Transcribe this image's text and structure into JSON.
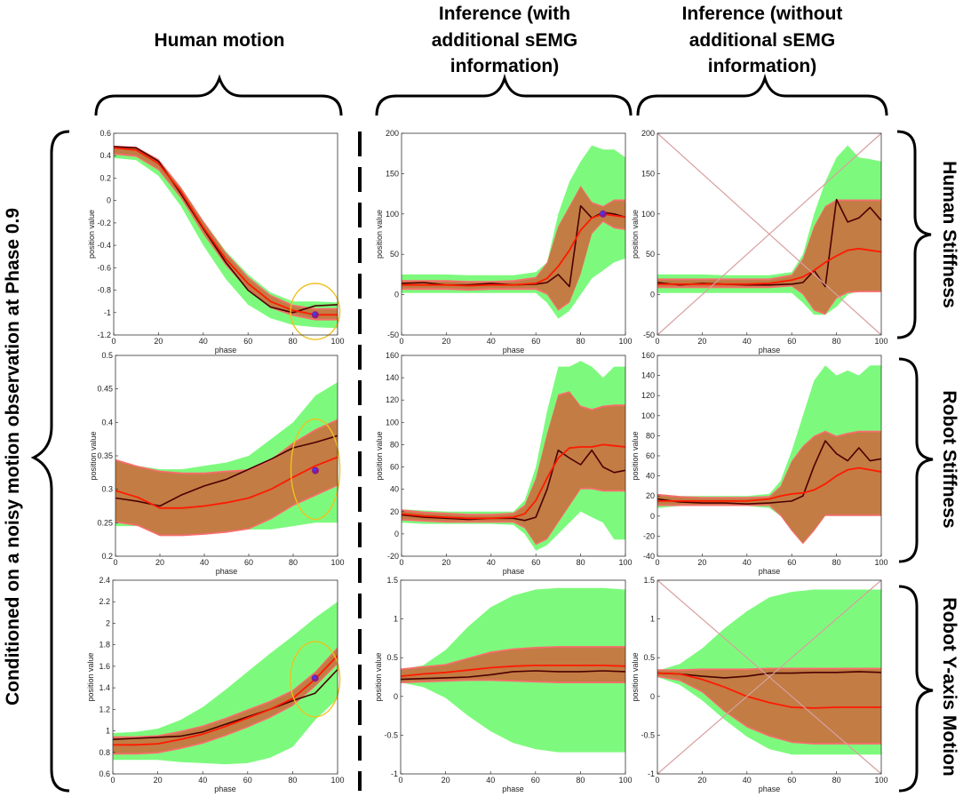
{
  "column_titles": [
    {
      "lines": [
        "Human motion"
      ]
    },
    {
      "lines": [
        "Inference (with",
        "additional sEMG",
        "information)"
      ]
    },
    {
      "lines": [
        "Inference (without",
        "additional sEMG",
        "information)"
      ]
    }
  ],
  "row_titles": [
    "Human  Stiffness",
    "Robot  Stiffness",
    "Robot  Y-axis Motion"
  ],
  "side_title": "Conditioned on a noisy motion observation at Phase 0.9",
  "colors": {
    "green_band": "#7dfa7d",
    "pink_band": "#f86d6d",
    "brown_band": "#c27c44",
    "mean_red": "#ff1a00",
    "truth_dark": "#4a0000",
    "ellipse": "#f0c020",
    "cross": "#d8a0a0",
    "observation_blue": "#3c3cff",
    "observation_purple": "#8a1a8a"
  },
  "chart_data": [
    {
      "id": "p11",
      "type": "line",
      "xlabel": "phase",
      "ylabel": "position value",
      "xlim": [
        0,
        100
      ],
      "ylim": [
        -1.2,
        0.6
      ],
      "xticks": [
        0,
        20,
        40,
        60,
        80,
        100
      ],
      "yticks": [
        -1.2,
        -1,
        -0.8,
        -0.6,
        -0.4,
        -0.2,
        0,
        0.2,
        0.4,
        0.6
      ],
      "ytick_labels": [
        "-1.2",
        "-1",
        "-0.8",
        "-0.6",
        "-0.4",
        "-0.2",
        "0",
        "0.2",
        "0.4",
        "0.6"
      ],
      "x": [
        0,
        10,
        20,
        30,
        40,
        50,
        60,
        70,
        80,
        90,
        100
      ],
      "mean": [
        0.47,
        0.45,
        0.33,
        0.08,
        -0.24,
        -0.52,
        -0.74,
        -0.9,
        -0.98,
        -1.02,
        -1.02
      ],
      "truth": [
        0.48,
        0.47,
        0.35,
        0.06,
        -0.25,
        -0.55,
        -0.8,
        -0.95,
        -1.0,
        -0.94,
        -0.93
      ],
      "outer_upper": [
        0.48,
        0.46,
        0.35,
        0.12,
        -0.18,
        -0.45,
        -0.66,
        -0.82,
        -0.9,
        -0.9,
        -0.91
      ],
      "outer_lower": [
        0.38,
        0.36,
        0.22,
        -0.05,
        -0.4,
        -0.7,
        -0.93,
        -1.05,
        -1.11,
        -1.13,
        -1.14
      ],
      "inner_upper": [
        0.49,
        0.48,
        0.37,
        0.12,
        -0.18,
        -0.46,
        -0.68,
        -0.84,
        -0.93,
        -0.96,
        -0.96
      ],
      "inner_lower": [
        0.41,
        0.39,
        0.27,
        0.02,
        -0.3,
        -0.58,
        -0.8,
        -0.96,
        -1.03,
        -1.07,
        -1.07
      ],
      "observation": {
        "x": 90,
        "y": -1.02
      },
      "ellipse": {
        "cx": 90,
        "cy": -0.99,
        "rx": 11,
        "ry": 0.25
      },
      "crossed": false
    },
    {
      "id": "p12",
      "type": "line",
      "xlabel": "phase",
      "ylabel": "position value",
      "xlim": [
        0,
        100
      ],
      "ylim": [
        -50,
        200
      ],
      "xticks": [
        0,
        20,
        40,
        60,
        80,
        100
      ],
      "yticks": [
        -50,
        0,
        50,
        100,
        150,
        200
      ],
      "ytick_labels": [
        "-50",
        "0",
        "50",
        "100",
        "150",
        "200"
      ],
      "x": [
        0,
        10,
        20,
        30,
        40,
        50,
        60,
        65,
        70,
        75,
        80,
        85,
        90,
        95,
        100
      ],
      "mean": [
        12,
        12,
        12,
        11,
        12,
        12,
        14,
        20,
        35,
        55,
        80,
        95,
        100,
        98,
        96
      ],
      "truth": [
        14,
        15,
        12,
        12,
        14,
        12,
        13,
        15,
        25,
        10,
        110,
        95,
        102,
        100,
        96
      ],
      "outer_upper": [
        25,
        25,
        25,
        24,
        24,
        24,
        28,
        40,
        100,
        140,
        165,
        185,
        180,
        180,
        170
      ],
      "outer_lower": [
        2,
        2,
        2,
        2,
        2,
        2,
        2,
        -10,
        -30,
        -20,
        0,
        20,
        30,
        40,
        45
      ],
      "inner_upper": [
        18,
        18,
        18,
        17,
        17,
        18,
        22,
        40,
        85,
        110,
        135,
        115,
        110,
        118,
        118
      ],
      "inner_lower": [
        6,
        6,
        6,
        5,
        6,
        6,
        6,
        0,
        -20,
        -10,
        25,
        75,
        90,
        82,
        80
      ],
      "observation": {
        "x": 90,
        "y": 100
      },
      "crossed": false
    },
    {
      "id": "p13",
      "type": "line",
      "xlabel": "phase",
      "ylabel": "position value",
      "xlim": [
        0,
        100
      ],
      "ylim": [
        -50,
        200
      ],
      "xticks": [
        0,
        20,
        40,
        60,
        80,
        100
      ],
      "yticks": [
        -50,
        0,
        50,
        100,
        150,
        200
      ],
      "ytick_labels": [
        "-50",
        "0",
        "50",
        "100",
        "150",
        "200"
      ],
      "x": [
        0,
        10,
        20,
        30,
        40,
        50,
        60,
        65,
        70,
        75,
        80,
        85,
        90,
        95,
        100
      ],
      "mean": [
        13,
        13,
        13,
        13,
        13,
        14,
        18,
        22,
        30,
        40,
        48,
        55,
        57,
        55,
        53
      ],
      "truth": [
        15,
        12,
        14,
        13,
        12,
        12,
        13,
        15,
        30,
        10,
        118,
        90,
        95,
        108,
        92
      ],
      "outer_upper": [
        25,
        25,
        25,
        24,
        24,
        24,
        28,
        50,
        100,
        140,
        170,
        185,
        170,
        168,
        165
      ],
      "outer_lower": [
        2,
        2,
        2,
        2,
        2,
        2,
        2,
        -10,
        -25,
        -25,
        -15,
        0,
        5,
        5,
        5
      ],
      "inner_upper": [
        20,
        20,
        20,
        20,
        20,
        20,
        25,
        45,
        85,
        110,
        118,
        118,
        118,
        118,
        118
      ],
      "inner_lower": [
        8,
        8,
        8,
        8,
        8,
        8,
        10,
        0,
        -20,
        -25,
        -5,
        2,
        3,
        3,
        3
      ],
      "crossed": true
    },
    {
      "id": "p21",
      "type": "line",
      "xlabel": "phase",
      "ylabel": "position value",
      "xlim": [
        0,
        100
      ],
      "ylim": [
        0.2,
        0.5
      ],
      "xticks": [
        0,
        20,
        40,
        60,
        80,
        100
      ],
      "yticks": [
        0.2,
        0.25,
        0.3,
        0.35,
        0.4,
        0.45,
        0.5
      ],
      "ytick_labels": [
        "0.2",
        "0.25",
        "0.3",
        "0.35",
        "0.4",
        "0.45",
        "0.5"
      ],
      "x": [
        0,
        10,
        20,
        30,
        40,
        50,
        60,
        70,
        80,
        90,
        100
      ],
      "mean": [
        0.298,
        0.288,
        0.272,
        0.272,
        0.275,
        0.28,
        0.287,
        0.3,
        0.318,
        0.335,
        0.348
      ],
      "truth": [
        0.287,
        0.282,
        0.275,
        0.292,
        0.305,
        0.315,
        0.33,
        0.345,
        0.362,
        0.37,
        0.38
      ],
      "outer_upper": [
        0.34,
        0.335,
        0.33,
        0.33,
        0.335,
        0.34,
        0.35,
        0.375,
        0.4,
        0.44,
        0.46
      ],
      "outer_lower": [
        0.245,
        0.245,
        0.24,
        0.24,
        0.24,
        0.24,
        0.24,
        0.24,
        0.245,
        0.25,
        0.25
      ],
      "inner_upper": [
        0.345,
        0.335,
        0.328,
        0.325,
        0.325,
        0.328,
        0.33,
        0.345,
        0.37,
        0.39,
        0.405
      ],
      "inner_lower": [
        0.25,
        0.245,
        0.23,
        0.23,
        0.232,
        0.235,
        0.24,
        0.255,
        0.275,
        0.29,
        0.305
      ],
      "observation": {
        "x": 90,
        "y": 0.328
      },
      "ellipse": {
        "cx": 90,
        "cy": 0.33,
        "rx": 11,
        "ry": 0.075
      },
      "crossed": false
    },
    {
      "id": "p22",
      "type": "line",
      "xlabel": "phase",
      "ylabel": "position value",
      "xlim": [
        0,
        100
      ],
      "ylim": [
        -20,
        160
      ],
      "xticks": [
        0,
        20,
        40,
        60,
        80,
        100
      ],
      "yticks": [
        -20,
        0,
        20,
        40,
        60,
        80,
        100,
        120,
        140,
        160
      ],
      "ytick_labels": [
        "-20",
        "0",
        "20",
        "40",
        "60",
        "80",
        "100",
        "120",
        "140",
        "160"
      ],
      "x": [
        0,
        10,
        20,
        30,
        40,
        50,
        55,
        60,
        65,
        70,
        75,
        80,
        85,
        90,
        95,
        100
      ],
      "mean": [
        18,
        16,
        15,
        14,
        14,
        15,
        18,
        30,
        50,
        68,
        77,
        78,
        78,
        80,
        79,
        78
      ],
      "truth": [
        17,
        15,
        14,
        13,
        14,
        14,
        12,
        15,
        40,
        75,
        68,
        62,
        75,
        60,
        55,
        57
      ],
      "outer_upper": [
        22,
        21,
        20,
        20,
        20,
        20,
        30,
        60,
        110,
        150,
        150,
        155,
        150,
        140,
        150,
        150
      ],
      "outer_lower": [
        10,
        9,
        9,
        9,
        9,
        8,
        0,
        -15,
        -10,
        0,
        10,
        20,
        15,
        10,
        -5,
        -5
      ],
      "inner_upper": [
        22,
        20,
        19,
        18,
        18,
        19,
        26,
        50,
        90,
        125,
        128,
        115,
        112,
        115,
        116,
        116
      ],
      "inner_lower": [
        12,
        11,
        10,
        10,
        10,
        10,
        5,
        -10,
        -5,
        10,
        25,
        40,
        40,
        38,
        38,
        38
      ],
      "crossed": false
    },
    {
      "id": "p23",
      "type": "line",
      "xlabel": "phase",
      "ylabel": "position value",
      "xlim": [
        0,
        100
      ],
      "ylim": [
        -40,
        160
      ],
      "xticks": [
        0,
        20,
        40,
        60,
        80,
        100
      ],
      "yticks": [
        -40,
        -20,
        0,
        20,
        40,
        60,
        80,
        100,
        120,
        140,
        160
      ],
      "ytick_labels": [
        "-40",
        "-20",
        "0",
        "20",
        "40",
        "60",
        "80",
        "100",
        "120",
        "140",
        "160"
      ],
      "x": [
        0,
        10,
        20,
        30,
        40,
        50,
        55,
        60,
        65,
        70,
        75,
        80,
        85,
        90,
        95,
        100
      ],
      "mean": [
        15,
        15,
        15,
        15,
        15,
        17,
        20,
        22,
        23,
        26,
        32,
        40,
        46,
        48,
        46,
        44
      ],
      "truth": [
        17,
        14,
        13,
        13,
        12,
        13,
        14,
        15,
        20,
        50,
        75,
        62,
        55,
        68,
        55,
        57
      ],
      "outer_upper": [
        22,
        20,
        20,
        20,
        20,
        22,
        35,
        65,
        100,
        135,
        150,
        140,
        145,
        140,
        150,
        150
      ],
      "outer_lower": [
        8,
        10,
        10,
        10,
        10,
        8,
        0,
        -5,
        -10,
        -5,
        0,
        0,
        0,
        0,
        0,
        0
      ],
      "inner_upper": [
        22,
        20,
        19,
        19,
        19,
        20,
        30,
        55,
        70,
        80,
        85,
        80,
        83,
        85,
        85,
        85
      ],
      "inner_lower": [
        10,
        10,
        10,
        10,
        10,
        10,
        0,
        -15,
        -28,
        -15,
        0,
        0,
        0,
        0,
        0,
        0
      ],
      "crossed": false
    },
    {
      "id": "p31",
      "type": "line",
      "xlabel": "phase",
      "ylabel": "position value",
      "xlim": [
        0,
        100
      ],
      "ylim": [
        0.6,
        2.4
      ],
      "xticks": [
        0,
        20,
        40,
        60,
        80,
        100
      ],
      "yticks": [
        0.6,
        0.8,
        1,
        1.2,
        1.4,
        1.6,
        1.8,
        2,
        2.2,
        2.4
      ],
      "ytick_labels": [
        "0.6",
        "0.8",
        "1",
        "1.2",
        "1.4",
        "1.6",
        "1.8",
        "2",
        "2.2",
        "2.4"
      ],
      "x": [
        0,
        10,
        20,
        30,
        40,
        50,
        60,
        70,
        80,
        90,
        100
      ],
      "mean": [
        0.87,
        0.87,
        0.88,
        0.92,
        0.97,
        1.04,
        1.12,
        1.2,
        1.3,
        1.48,
        1.7
      ],
      "truth": [
        0.92,
        0.93,
        0.94,
        0.95,
        0.99,
        1.06,
        1.13,
        1.2,
        1.28,
        1.35,
        1.57
      ],
      "outer_upper": [
        0.98,
        0.99,
        1.02,
        1.1,
        1.22,
        1.38,
        1.55,
        1.72,
        1.88,
        2.05,
        2.2
      ],
      "outer_lower": [
        0.73,
        0.73,
        0.73,
        0.71,
        0.7,
        0.69,
        0.7,
        0.75,
        0.85,
        1.1,
        1.3
      ],
      "inner_upper": [
        0.95,
        0.95,
        0.96,
        1.0,
        1.05,
        1.12,
        1.2,
        1.28,
        1.38,
        1.55,
        1.78
      ],
      "inner_lower": [
        0.78,
        0.78,
        0.79,
        0.83,
        0.88,
        0.95,
        1.03,
        1.12,
        1.23,
        1.41,
        1.62
      ],
      "observation": {
        "x": 90,
        "y": 1.49
      },
      "ellipse": {
        "cx": 90,
        "cy": 1.48,
        "rx": 11,
        "ry": 0.35
      },
      "crossed": false
    },
    {
      "id": "p32",
      "type": "line",
      "xlabel": "phase",
      "ylabel": "position value",
      "xlim": [
        0,
        100
      ],
      "ylim": [
        -1,
        1.5
      ],
      "xticks": [
        0,
        20,
        40,
        60,
        80,
        100
      ],
      "yticks": [
        -1,
        -0.5,
        0,
        0.5,
        1,
        1.5
      ],
      "ytick_labels": [
        "-1",
        "-0.5",
        "0",
        "0.5",
        "1",
        "1.5"
      ],
      "x": [
        0,
        10,
        20,
        30,
        40,
        50,
        60,
        70,
        80,
        90,
        100
      ],
      "mean": [
        0.26,
        0.29,
        0.31,
        0.34,
        0.37,
        0.39,
        0.4,
        0.4,
        0.4,
        0.4,
        0.39
      ],
      "truth": [
        0.22,
        0.23,
        0.24,
        0.25,
        0.28,
        0.32,
        0.33,
        0.32,
        0.32,
        0.33,
        0.32
      ],
      "outer_upper": [
        0.35,
        0.4,
        0.6,
        0.9,
        1.15,
        1.3,
        1.38,
        1.4,
        1.4,
        1.4,
        1.38
      ],
      "outer_lower": [
        0.18,
        0.12,
        -0.02,
        -0.25,
        -0.45,
        -0.6,
        -0.68,
        -0.72,
        -0.72,
        -0.72,
        -0.72
      ],
      "inner_upper": [
        0.36,
        0.39,
        0.42,
        0.5,
        0.58,
        0.62,
        0.64,
        0.65,
        0.65,
        0.65,
        0.65
      ],
      "inner_lower": [
        0.17,
        0.18,
        0.19,
        0.2,
        0.2,
        0.19,
        0.18,
        0.17,
        0.17,
        0.17,
        0.17
      ],
      "crossed": false
    },
    {
      "id": "p33",
      "type": "line",
      "xlabel": "phase",
      "ylabel": "position value",
      "xlim": [
        0,
        100
      ],
      "ylim": [
        -1,
        1.5
      ],
      "xticks": [
        0,
        20,
        40,
        60,
        80,
        100
      ],
      "yticks": [
        -1,
        -0.5,
        0,
        0.5,
        1,
        1.5
      ],
      "ytick_labels": [
        "-1",
        "-0.5",
        "0",
        "0.5",
        "1",
        "1.5"
      ],
      "x": [
        0,
        10,
        20,
        30,
        40,
        50,
        60,
        70,
        80,
        90,
        100
      ],
      "mean": [
        0.3,
        0.29,
        0.22,
        0.12,
        0.0,
        -0.08,
        -0.14,
        -0.15,
        -0.14,
        -0.14,
        -0.14
      ],
      "truth": [
        0.3,
        0.29,
        0.26,
        0.24,
        0.26,
        0.3,
        0.3,
        0.31,
        0.31,
        0.32,
        0.31
      ],
      "outer_upper": [
        0.33,
        0.42,
        0.62,
        0.88,
        1.1,
        1.28,
        1.35,
        1.38,
        1.38,
        1.38,
        1.38
      ],
      "outer_lower": [
        0.25,
        0.15,
        -0.05,
        -0.3,
        -0.52,
        -0.68,
        -0.75,
        -0.75,
        -0.75,
        -0.75,
        -0.75
      ],
      "inner_upper": [
        0.35,
        0.35,
        0.36,
        0.36,
        0.36,
        0.37,
        0.37,
        0.37,
        0.37,
        0.37,
        0.37
      ],
      "inner_lower": [
        0.25,
        0.2,
        0.05,
        -0.2,
        -0.4,
        -0.52,
        -0.6,
        -0.62,
        -0.62,
        -0.62,
        -0.62
      ],
      "crossed": true
    }
  ]
}
